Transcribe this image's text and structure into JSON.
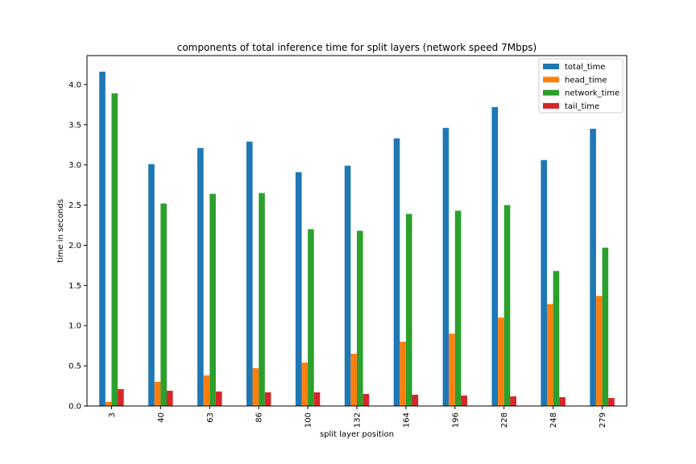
{
  "chart_data": {
    "type": "bar",
    "title": "components of total inference time for split layers (network speed 7Mbps)",
    "xlabel": "split layer position",
    "ylabel": "time in seconds",
    "categories": [
      "3",
      "40",
      "63",
      "86",
      "100",
      "132",
      "164",
      "196",
      "228",
      "248",
      "279"
    ],
    "ylim": [
      0,
      4.36
    ],
    "yticks": [
      "0.0",
      "0.5",
      "1.0",
      "1.5",
      "2.0",
      "2.5",
      "3.0",
      "3.5",
      "4.0"
    ],
    "grid": false,
    "legend_position": "top-right",
    "series": [
      {
        "name": "total_time",
        "color": "#1f77b4",
        "values": [
          4.16,
          3.01,
          3.21,
          3.29,
          2.91,
          2.99,
          3.33,
          3.46,
          3.72,
          3.06,
          3.45
        ]
      },
      {
        "name": "head_time",
        "color": "#ff7f0e",
        "values": [
          0.05,
          0.3,
          0.38,
          0.47,
          0.54,
          0.65,
          0.8,
          0.9,
          1.1,
          1.27,
          1.37
        ]
      },
      {
        "name": "network_time",
        "color": "#2ca02c",
        "values": [
          3.89,
          2.52,
          2.64,
          2.65,
          2.2,
          2.18,
          2.39,
          2.43,
          2.5,
          1.68,
          1.97
        ]
      },
      {
        "name": "tail_time",
        "color": "#d62728",
        "values": [
          0.21,
          0.19,
          0.18,
          0.17,
          0.17,
          0.15,
          0.14,
          0.13,
          0.12,
          0.11,
          0.1
        ]
      }
    ]
  }
}
